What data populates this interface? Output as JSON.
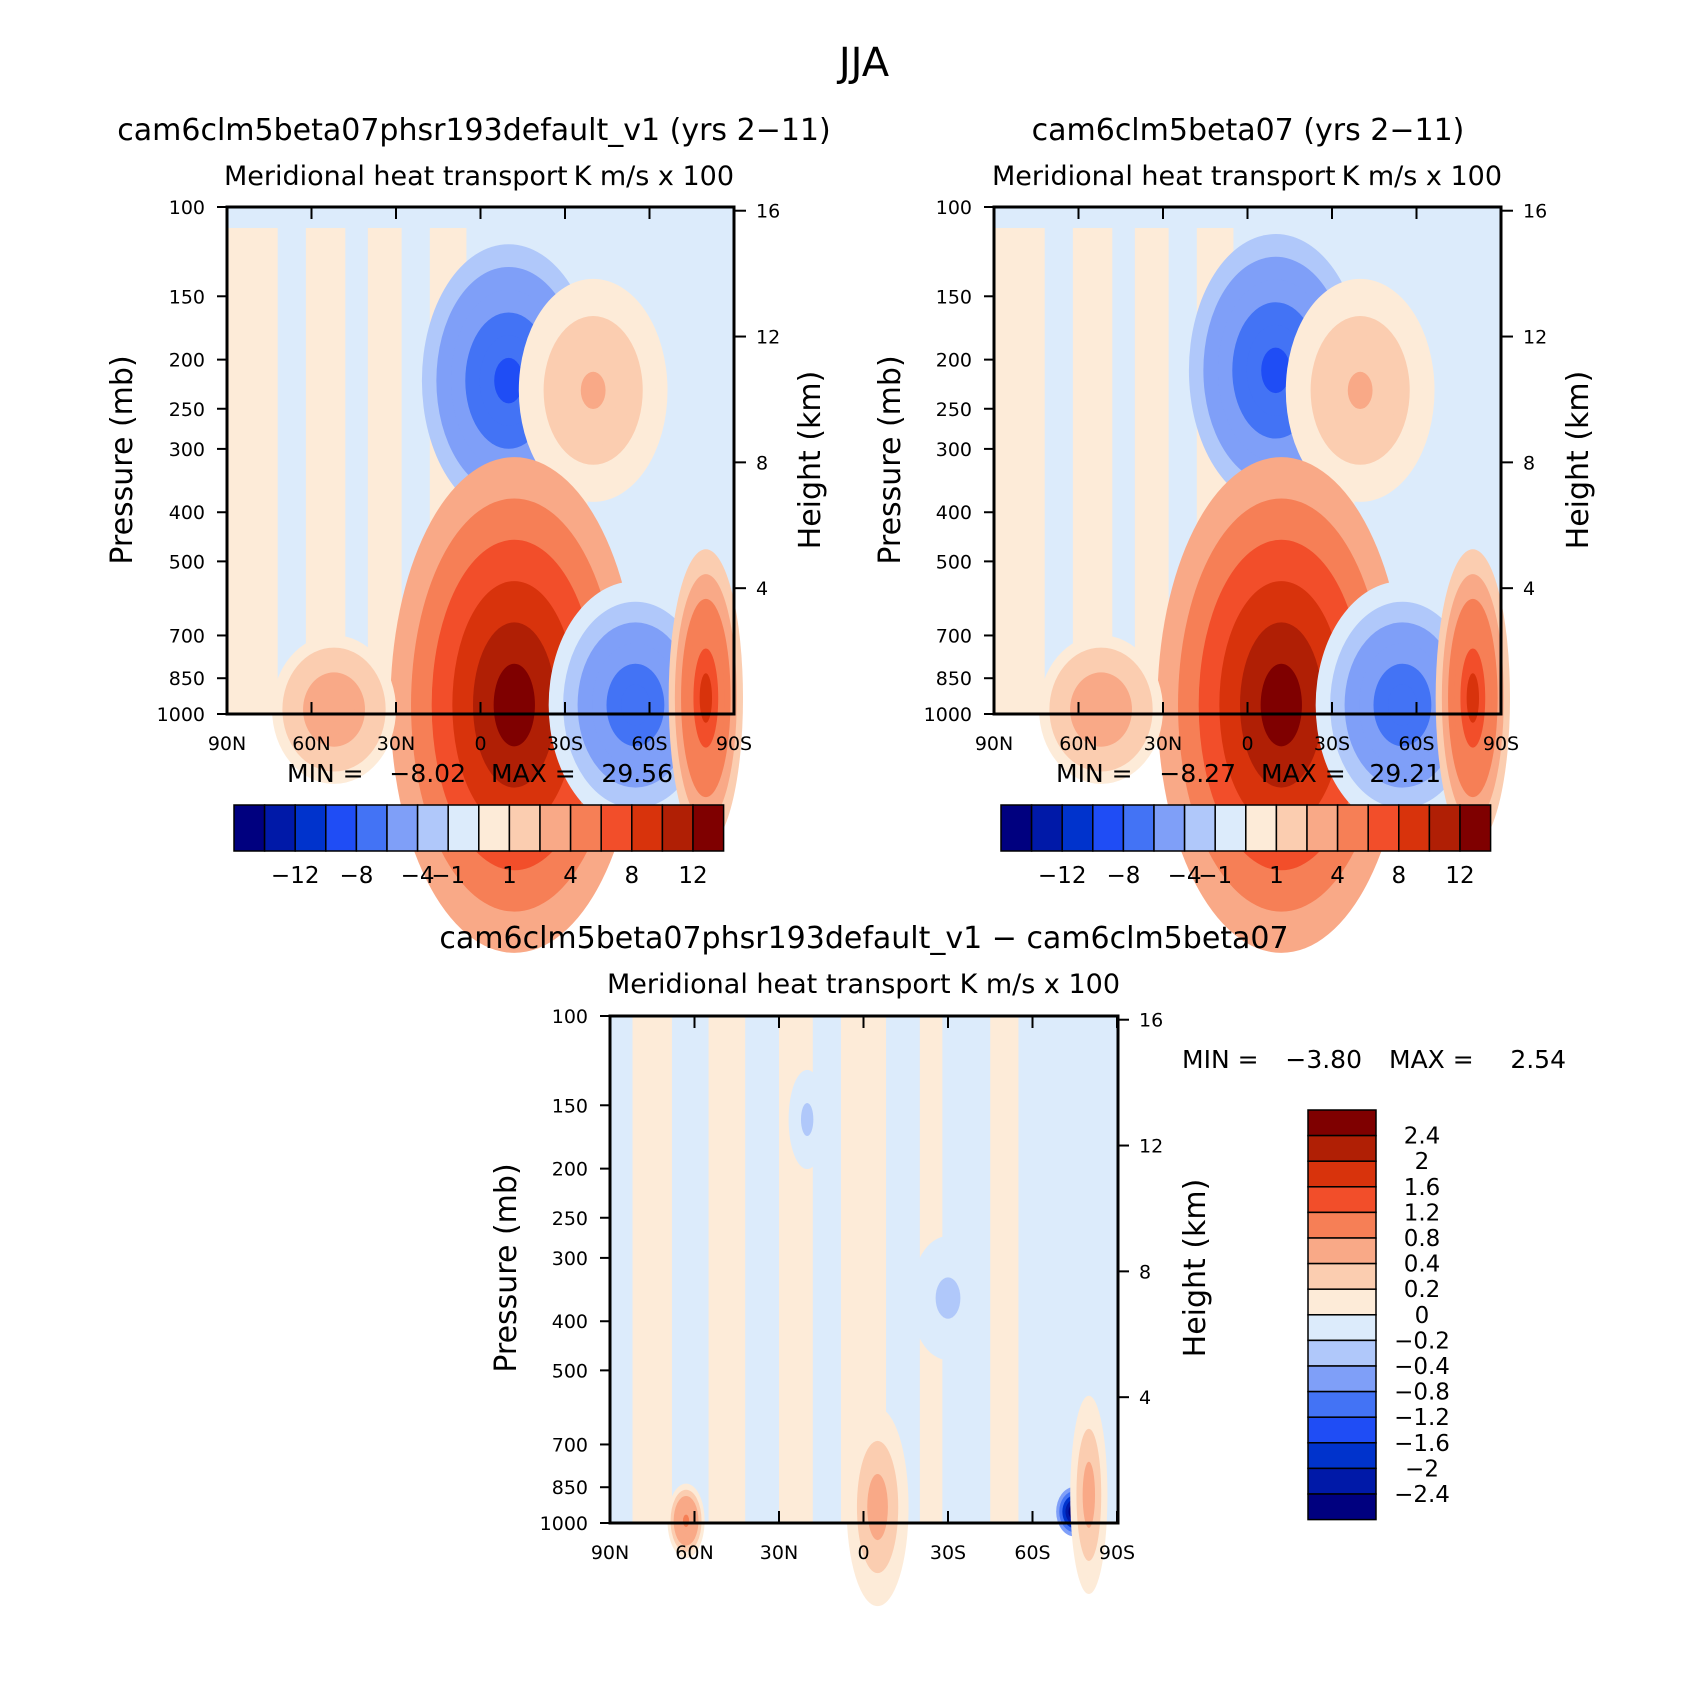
{
  "page_title": "JJA",
  "chart_data": [
    {
      "type": "heatmap",
      "title": "cam6clm5beta07phsr193default_v1 (yrs 2−11)",
      "subtitle_left": "Meridional heat transport",
      "subtitle_right": "K m/s x 100",
      "xlabel": "",
      "ylabel": "Pressure (mb)",
      "y2label": "Height (km)",
      "x_ticks": [
        "90N",
        "60N",
        "30N",
        "0",
        "30S",
        "60S",
        "90S"
      ],
      "y_ticks": [
        "100",
        "150",
        "200",
        "250",
        "300",
        "400",
        "500",
        "700",
        "850",
        "1000"
      ],
      "y2_ticks": [
        "16",
        "12",
        "8",
        "4"
      ],
      "min_label": "MIN =",
      "min": "−8.02",
      "max_label": "MAX =",
      "max": "29.56",
      "colorbar_labels": [
        "−12",
        "−8",
        "−4",
        "−1",
        "1",
        "4",
        "8",
        "12"
      ],
      "features": [
        {
          "lat": -10,
          "p": 220,
          "value": -7,
          "rx": 14,
          "ry": 110
        },
        {
          "lat": -40,
          "p": 230,
          "value": 2,
          "rx": 12,
          "ry": 90
        },
        {
          "lat": -12,
          "p": 960,
          "value": 14,
          "rx": 20,
          "ry": 200
        },
        {
          "lat": -55,
          "p": 960,
          "value": -6,
          "rx": 14,
          "ry": 100
        },
        {
          "lat": -80,
          "p": 930,
          "value": 8,
          "rx": 6,
          "ry": 120
        },
        {
          "lat": 52,
          "p": 980,
          "value": 3,
          "rx": 10,
          "ry": 60
        }
      ]
    },
    {
      "type": "heatmap",
      "title": "cam6clm5beta07 (yrs 2−11)",
      "subtitle_left": "Meridional heat transport",
      "subtitle_right": "K m/s x 100",
      "xlabel": "",
      "ylabel": "Pressure (mb)",
      "y2label": "Height (km)",
      "x_ticks": [
        "90N",
        "60N",
        "30N",
        "0",
        "30S",
        "60S",
        "90S"
      ],
      "y_ticks": [
        "100",
        "150",
        "200",
        "250",
        "300",
        "400",
        "500",
        "700",
        "850",
        "1000"
      ],
      "y2_ticks": [
        "16",
        "12",
        "8",
        "4"
      ],
      "min_label": "MIN =",
      "min": "−8.27",
      "max_label": "MAX =",
      "max": "29.21",
      "colorbar_labels": [
        "−12",
        "−8",
        "−4",
        "−1",
        "1",
        "4",
        "8",
        "12"
      ],
      "features": [
        {
          "lat": -10,
          "p": 210,
          "value": -7,
          "rx": 14,
          "ry": 110
        },
        {
          "lat": -40,
          "p": 230,
          "value": 2,
          "rx": 12,
          "ry": 90
        },
        {
          "lat": -12,
          "p": 960,
          "value": 14,
          "rx": 20,
          "ry": 200
        },
        {
          "lat": -55,
          "p": 960,
          "value": -6,
          "rx": 14,
          "ry": 100
        },
        {
          "lat": -80,
          "p": 930,
          "value": 8,
          "rx": 6,
          "ry": 120
        },
        {
          "lat": 52,
          "p": 980,
          "value": 3,
          "rx": 10,
          "ry": 60
        }
      ]
    },
    {
      "type": "heatmap",
      "title": "cam6clm5beta07phsr193default_v1 − cam6clm5beta07",
      "subtitle_left": "Meridional heat transport",
      "subtitle_right": "K m/s x 100",
      "xlabel": "",
      "ylabel": "Pressure (mb)",
      "y2label": "Height (km)",
      "x_ticks": [
        "90N",
        "60N",
        "30N",
        "0",
        "30S",
        "60S",
        "90S"
      ],
      "y_ticks": [
        "100",
        "150",
        "200",
        "250",
        "300",
        "400",
        "500",
        "700",
        "850",
        "1000"
      ],
      "y2_ticks": [
        "16",
        "12",
        "8",
        "4"
      ],
      "min_label": "MIN =",
      "min": "−3.80",
      "max_label": "MAX =",
      "max": "2.54",
      "colorbar_labels": [
        "2.4",
        "2",
        "1.6",
        "1.2",
        "0.8",
        "0.4",
        "0.2",
        "0",
        "−0.2",
        "−0.4",
        "−0.8",
        "−1.2",
        "−1.6",
        "−2",
        "−2.4"
      ],
      "features": [
        {
          "lat": -5,
          "p": 930,
          "value": 0.5,
          "rx": 5,
          "ry": 80
        },
        {
          "lat": -30,
          "p": 360,
          "value": -0.3,
          "rx": 6,
          "ry": 50
        },
        {
          "lat": 20,
          "p": 160,
          "value": -0.3,
          "rx": 3,
          "ry": 40
        },
        {
          "lat": -75,
          "p": 950,
          "value": -3.5,
          "rx": 3,
          "ry": 20
        },
        {
          "lat": -80,
          "p": 880,
          "value": 0.6,
          "rx": 3,
          "ry": 80
        },
        {
          "lat": 63,
          "p": 990,
          "value": 0.8,
          "rx": 3,
          "ry": 30
        }
      ]
    }
  ],
  "colors": {
    "colorbar_16": [
      "#00007f",
      "#0019a8",
      "#0033cc",
      "#1f4df5",
      "#4373f5",
      "#7f9ff8",
      "#b0c8fa",
      "#dcebfb",
      "#fdebd8",
      "#fbcdb0",
      "#f9a987",
      "#f67f56",
      "#f24e2a",
      "#d8330c",
      "#b01f05",
      "#7f0000"
    ]
  }
}
